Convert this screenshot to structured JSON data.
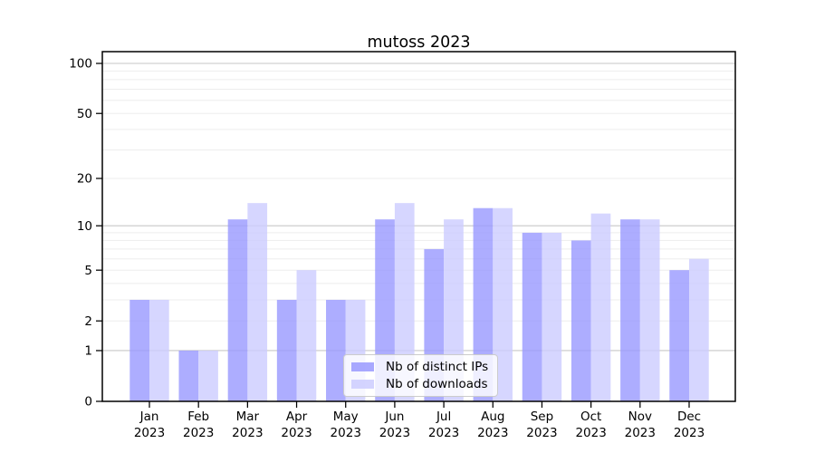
{
  "chart_data": {
    "type": "bar",
    "title": "mutoss 2023",
    "year_label": "2023",
    "categories": [
      "Jan",
      "Feb",
      "Mar",
      "Apr",
      "May",
      "Jun",
      "Jul",
      "Aug",
      "Sep",
      "Oct",
      "Nov",
      "Dec"
    ],
    "series": [
      {
        "name": "Nb of distinct IPs",
        "color": "#9999ff",
        "values": [
          3,
          1,
          11,
          3,
          3,
          11,
          7,
          13,
          9,
          8,
          11,
          5
        ]
      },
      {
        "name": "Nb of downloads",
        "color": "#ccccff",
        "values": [
          3,
          1,
          14,
          5,
          3,
          14,
          11,
          13,
          9,
          12,
          11,
          6
        ]
      }
    ],
    "y_axis": {
      "scale": "log1p",
      "ticks": [
        0,
        1,
        2,
        5,
        10,
        20,
        50,
        100
      ],
      "range": [
        0,
        100
      ]
    },
    "grid": {
      "major": [
        1,
        10,
        100
      ],
      "minor": [
        2,
        3,
        4,
        5,
        6,
        7,
        8,
        9,
        20,
        30,
        40,
        50,
        60,
        70,
        80,
        90
      ],
      "major_color": "#c7c7c7",
      "minor_color": "#ededed"
    },
    "legend": {
      "position": "lower-center-inside"
    }
  }
}
